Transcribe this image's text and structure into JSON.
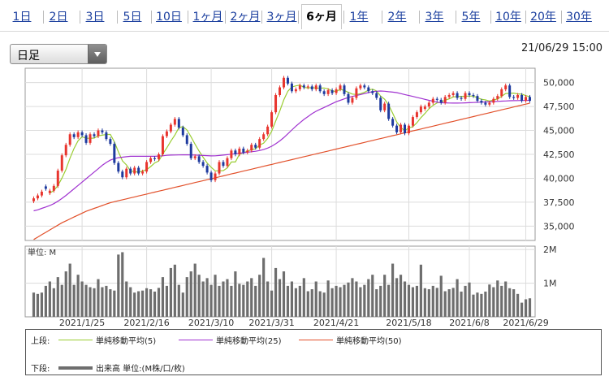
{
  "tabs": [
    "1日",
    "2日",
    "3日",
    "5日",
    "10日",
    "1ヶ月",
    "2ヶ月",
    "3ヶ月",
    "6ヶ月",
    "1年",
    "2年",
    "3年",
    "5年",
    "10年",
    "20年",
    "30年"
  ],
  "active_tab": "6ヶ月",
  "period_select": {
    "value": "日足"
  },
  "timestamp": "21/06/29 15:00",
  "colors": {
    "up": "#e8352e",
    "down": "#1e3a9e",
    "ma5": "#9acd32",
    "ma25": "#a032d0",
    "ma50": "#e2502a",
    "volume": "#6e6e6e"
  },
  "chart_data": [
    {
      "type": "candlestick",
      "x_ticks": [
        "2021/1/25",
        "2021/2/16",
        "2021/3/10",
        "2021/3/31",
        "2021/4/21",
        "2021/5/18",
        "2021/6/8",
        "2021/6/29"
      ],
      "y_ticks": [
        "35,000",
        "37,500",
        "40,000",
        "42,500",
        "45,000",
        "47,500",
        "50,000"
      ],
      "ylim": [
        33500,
        51500
      ],
      "grid": true,
      "close": [
        37900,
        38200,
        38600,
        38900,
        38700,
        39200,
        40800,
        42400,
        43500,
        44600,
        44300,
        44800,
        44500,
        43700,
        44600,
        44400,
        45000,
        44800,
        44100,
        43600,
        41600,
        40700,
        40100,
        41000,
        40500,
        41100,
        40500,
        40700,
        41700,
        42100,
        42000,
        42500,
        44400,
        44900,
        45600,
        46200,
        45300,
        44500,
        43600,
        42100,
        42300,
        41700,
        41300,
        40600,
        39800,
        40500,
        41700,
        41300,
        42100,
        42900,
        42500,
        43100,
        42700,
        42900,
        43500,
        43200,
        44100,
        44600,
        45400,
        46900,
        48700,
        49500,
        50500,
        49900,
        49100,
        49300,
        49700,
        49500,
        49600,
        49300,
        49700,
        49100,
        48800,
        49200,
        48900,
        49300,
        49700,
        48800,
        47900,
        48400,
        49400,
        49700,
        49500,
        49100,
        48900,
        48400,
        47100,
        47800,
        46200,
        45500,
        44800,
        45600,
        44700,
        45500,
        46400,
        46900,
        47500,
        47500,
        47900,
        48300,
        48200,
        47900,
        48500,
        48700,
        48900,
        48400,
        48300,
        48900,
        48700,
        48600,
        48100,
        47900,
        47700,
        47900,
        48300,
        48600,
        49300,
        49700,
        48500,
        48400,
        48700,
        48100,
        48500,
        48100
      ],
      "candle_color": [
        "up",
        "up",
        "up",
        "down",
        "up",
        "up",
        "up",
        "up",
        "up",
        "up",
        "down",
        "up",
        "down",
        "down",
        "up",
        "down",
        "up",
        "down",
        "down",
        "down",
        "down",
        "down",
        "down",
        "up",
        "down",
        "up",
        "down",
        "up",
        "up",
        "up",
        "down",
        "up",
        "up",
        "up",
        "up",
        "up",
        "down",
        "down",
        "down",
        "down",
        "up",
        "down",
        "down",
        "down",
        "down",
        "up",
        "up",
        "down",
        "up",
        "up",
        "down",
        "up",
        "down",
        "up",
        "up",
        "down",
        "up",
        "up",
        "up",
        "up",
        "up",
        "up",
        "up",
        "down",
        "down",
        "up",
        "up",
        "down",
        "up",
        "down",
        "up",
        "down",
        "down",
        "up",
        "down",
        "up",
        "up",
        "down",
        "down",
        "up",
        "up",
        "up",
        "down",
        "down",
        "down",
        "down",
        "down",
        "up",
        "down",
        "down",
        "down",
        "up",
        "down",
        "up",
        "up",
        "up",
        "up",
        "up",
        "up",
        "up",
        "down",
        "down",
        "up",
        "up",
        "up",
        "down",
        "down",
        "up",
        "down",
        "down",
        "down",
        "down",
        "down",
        "up",
        "up",
        "up",
        "up",
        "up",
        "down",
        "down",
        "up",
        "down",
        "up",
        "down"
      ],
      "series": [
        {
          "name": "単純移動平均(5)",
          "values": [
            null,
            null,
            null,
            null,
            38460,
            38720,
            39240,
            40020,
            40920,
            42100,
            43120,
            43920,
            44340,
            44180,
            44180,
            44200,
            44440,
            44500,
            44580,
            44580,
            43820,
            42760,
            41820,
            41400,
            40780,
            40680,
            40640,
            40760,
            40900,
            41220,
            41600,
            41800,
            42540,
            43180,
            43880,
            44520,
            45280,
            45400,
            45040,
            44340,
            43560,
            42840,
            42200,
            41600,
            41140,
            40780,
            40780,
            40800,
            41080,
            41700,
            41700,
            42500,
            42660,
            42820,
            43000,
            43080,
            43480,
            43660,
            44160,
            44920,
            45980,
            47020,
            48200,
            49100,
            49540,
            49660,
            49740,
            49500,
            49440,
            49480,
            49440,
            49420,
            49440,
            49340,
            49140,
            49060,
            49300,
            49180,
            48980,
            48800,
            48760,
            48840,
            48980,
            49220,
            49320,
            49120,
            48600,
            48260,
            47660,
            46800,
            45880,
            45300,
            44980,
            45260,
            45400,
            45800,
            46340,
            46780,
            47260,
            47620,
            47880,
            47960,
            48160,
            48300,
            48500,
            48540,
            48560,
            48560,
            48600,
            48580,
            48420,
            48260,
            48200,
            48060,
            48180,
            48290,
            48560,
            48860,
            48880,
            48900,
            48820,
            48800,
            48640,
            48520
          ]
        },
        {
          "name": "単純移動平均(25)",
          "values": [
            36600,
            36700,
            36850,
            37000,
            37150,
            37350,
            37600,
            37900,
            38200,
            38550,
            38900,
            39250,
            39600,
            39950,
            40300,
            40650,
            41000,
            41350,
            41650,
            41900,
            42050,
            42150,
            42200,
            42250,
            42300,
            42300,
            42300,
            42300,
            42300,
            42300,
            42300,
            42320,
            42350,
            42400,
            42420,
            42430,
            42440,
            42450,
            42450,
            42440,
            42420,
            42400,
            42380,
            42360,
            42340,
            42350,
            42380,
            42420,
            42470,
            42520,
            42570,
            42620,
            42670,
            42720,
            42770,
            42820,
            42900,
            43000,
            43150,
            43350,
            43600,
            43900,
            44250,
            44650,
            45050,
            45450,
            45800,
            46150,
            46450,
            46750,
            47000,
            47200,
            47400,
            47600,
            47800,
            48000,
            48150,
            48300,
            48450,
            48550,
            48650,
            48750,
            48850,
            48950,
            49050,
            49100,
            49120,
            49100,
            49050,
            49000,
            48950,
            48850,
            48750,
            48650,
            48550,
            48450,
            48350,
            48250,
            48150,
            48050,
            47950,
            47900,
            47880,
            47870,
            47860,
            47860,
            47870,
            47880,
            47900,
            47920,
            47940,
            47960,
            47980,
            48000,
            48020,
            48040,
            48060,
            48080,
            48100,
            48110,
            48120,
            48130,
            48140,
            48150
          ]
        },
        {
          "name": "単純移動平均(50)",
          "values": [
            33600,
            33850,
            34100,
            34350,
            34600,
            34850,
            35100,
            35350,
            35550,
            35750,
            35950,
            36150,
            36350,
            36550,
            36700,
            36850,
            37000,
            37150,
            37300,
            37450,
            37550,
            37650,
            37750,
            37850,
            37950,
            38050,
            38150,
            38250,
            38350,
            38450,
            38550,
            38650,
            38750,
            38850,
            38950,
            39050,
            39150,
            39250,
            39350,
            39450,
            39550,
            39650,
            39750,
            39850,
            39950,
            40050,
            40150,
            40250,
            40350,
            40450,
            40550,
            40650,
            40750,
            40850,
            40950,
            41050,
            41150,
            41250,
            41350,
            41450,
            41550,
            41650,
            41750,
            41850,
            41950,
            42050,
            42150,
            42250,
            42350,
            42450,
            42550,
            42650,
            42750,
            42850,
            42950,
            43050,
            43150,
            43250,
            43350,
            43450,
            43550,
            43650,
            43750,
            43850,
            43950,
            44050,
            44150,
            44250,
            44350,
            44450,
            44550,
            44650,
            44750,
            44850,
            44950,
            45050,
            45150,
            45250,
            45350,
            45450,
            45550,
            45650,
            45750,
            45850,
            45950,
            46050,
            46150,
            46250,
            46350,
            46450,
            46550,
            46650,
            46750,
            46850,
            46950,
            47050,
            47150,
            47250,
            47350,
            47450,
            47550,
            47650,
            47750,
            47850
          ]
        }
      ]
    },
    {
      "type": "bar",
      "title": "単位: M",
      "y_ticks": [
        "1M",
        "2M"
      ],
      "ylim": [
        0,
        2.1
      ],
      "series": [
        {
          "name": "出来高",
          "values": [
            0.72,
            0.68,
            0.72,
            0.92,
            1.05,
            0.85,
            1.18,
            0.95,
            1.35,
            1.58,
            0.95,
            1.25,
            1.05,
            0.95,
            0.88,
            0.85,
            1.12,
            0.88,
            0.92,
            0.82,
            0.78,
            1.85,
            1.92,
            1.05,
            0.88,
            0.72,
            0.76,
            0.78,
            0.85,
            0.82,
            0.75,
            0.86,
            1.18,
            0.92,
            1.45,
            1.55,
            0.95,
            0.72,
            1.18,
            1.35,
            1.58,
            1.25,
            1.05,
            1.15,
            0.95,
            1.25,
            0.92,
            1.05,
            1.12,
            0.92,
            1.35,
            0.98,
            0.95,
            1.05,
            1.15,
            0.92,
            1.25,
            1.75,
            1.05,
            0.78,
            1.45,
            1.12,
            1.35,
            0.92,
            1.05,
            0.85,
            0.92,
            1.15,
            0.76,
            0.82,
            1.05,
            0.76,
            0.72,
            1.08,
            0.85,
            0.92,
            0.88,
            0.95,
            1.02,
            1.15,
            1.05,
            0.88,
            0.95,
            1.12,
            1.25,
            0.82,
            0.92,
            1.25,
            0.95,
            1.58,
            1.15,
            1.25,
            1.05,
            0.95,
            0.88,
            0.92,
            1.55,
            0.85,
            0.82,
            0.92,
            0.86,
            1.22,
            0.76,
            0.82,
            0.86,
            1.12,
            0.75,
            0.92,
            1.02,
            0.66,
            0.72,
            0.68,
            0.75,
            0.96,
            0.88,
            1.08,
            0.92,
            1.05,
            0.85,
            0.82,
            0.68,
            0.42,
            0.52,
            0.55
          ]
        }
      ]
    }
  ],
  "legend": {
    "upper_label": "上段:",
    "lower_label": "下段:",
    "ma5_label": "単純移動平均(5)",
    "ma25_label": "単純移動平均(25)",
    "ma50_label": "単純移動平均(50)",
    "volume_label": "出来高 単位:(M株/口/枚)"
  }
}
